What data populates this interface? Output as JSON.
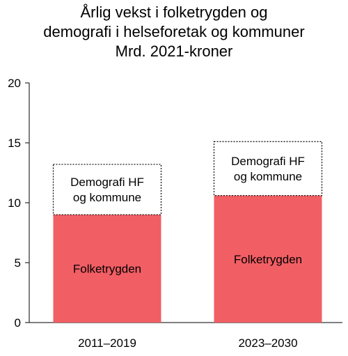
{
  "chart_data": {
    "type": "bar",
    "stacked": true,
    "title": [
      "Årlig vekst i folketrygden og",
      "demografi i helseforetak og kommuner",
      "Mrd. 2021-kroner"
    ],
    "categories": [
      "2011–2019",
      "2023–2030"
    ],
    "series": [
      {
        "name": "Folketrygden",
        "values": [
          9.0,
          10.6
        ],
        "color": "#f15e64",
        "style": "filled"
      },
      {
        "name": "Demografi HF og kommune",
        "values": [
          4.2,
          4.5
        ],
        "color": "#000000",
        "style": "dotted-outline"
      }
    ],
    "series_label_lines": [
      [
        "Folketrygden"
      ],
      [
        "Demografi HF",
        "og kommune"
      ]
    ],
    "ylim": [
      0,
      20
    ],
    "yticks": [
      0,
      5,
      10,
      15,
      20
    ],
    "grid": false,
    "legend": "none"
  }
}
